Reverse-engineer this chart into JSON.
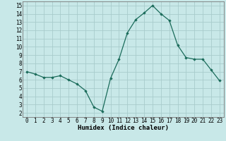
{
  "x": [
    0,
    1,
    2,
    3,
    4,
    5,
    6,
    7,
    8,
    9,
    10,
    11,
    12,
    13,
    14,
    15,
    16,
    17,
    18,
    19,
    20,
    21,
    22,
    23
  ],
  "y": [
    7.0,
    6.7,
    6.3,
    6.3,
    6.5,
    6.0,
    5.5,
    4.7,
    2.7,
    2.2,
    6.2,
    8.5,
    11.7,
    13.3,
    14.1,
    15.0,
    14.0,
    13.2,
    10.2,
    8.7,
    8.5,
    8.5,
    7.2,
    5.9
  ],
  "xlabel": "Humidex (Indice chaleur)",
  "xlim": [
    -0.5,
    23.5
  ],
  "ylim": [
    1.5,
    15.5
  ],
  "yticks": [
    2,
    3,
    4,
    5,
    6,
    7,
    8,
    9,
    10,
    11,
    12,
    13,
    14,
    15
  ],
  "xticks": [
    0,
    1,
    2,
    3,
    4,
    5,
    6,
    7,
    8,
    9,
    10,
    11,
    12,
    13,
    14,
    15,
    16,
    17,
    18,
    19,
    20,
    21,
    22,
    23
  ],
  "line_color": "#1a6b5a",
  "marker_color": "#1a6b5a",
  "bg_color": "#c8e8e8",
  "grid_color": "#a8cccc",
  "tick_fontsize": 5.5,
  "label_fontsize": 6.5
}
